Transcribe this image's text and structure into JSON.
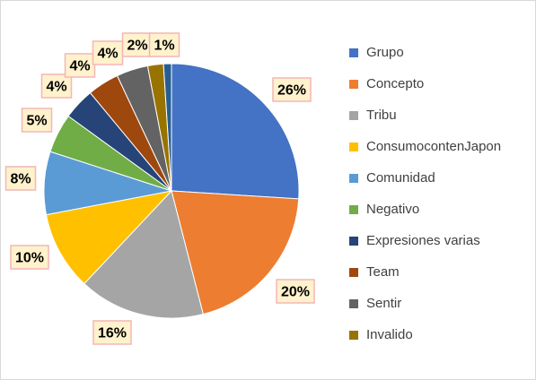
{
  "chart_data": {
    "type": "pie",
    "categories": [
      "Grupo",
      "Concepto",
      "Tribu",
      "ConsumocontenJapon",
      "Comunidad",
      "Negativo",
      "Expresiones varias",
      "Team",
      "Sentir",
      "Invalido",
      ""
    ],
    "values": [
      26,
      20,
      16,
      10,
      8,
      5,
      4,
      4,
      4,
      2,
      1
    ],
    "labels": [
      "26%",
      "20%",
      "16%",
      "10%",
      "8%",
      "5%",
      "4%",
      "4%",
      "4%",
      "2%",
      "1%"
    ],
    "colors": [
      "#4472c4",
      "#ed7d31",
      "#a5a5a5",
      "#ffc000",
      "#5b9bd5",
      "#70ad47",
      "#264478",
      "#9e480e",
      "#636363",
      "#997300",
      "#255e91"
    ],
    "legend_placement": "right",
    "legend_visible_count": 10,
    "title": "",
    "grid": false
  }
}
